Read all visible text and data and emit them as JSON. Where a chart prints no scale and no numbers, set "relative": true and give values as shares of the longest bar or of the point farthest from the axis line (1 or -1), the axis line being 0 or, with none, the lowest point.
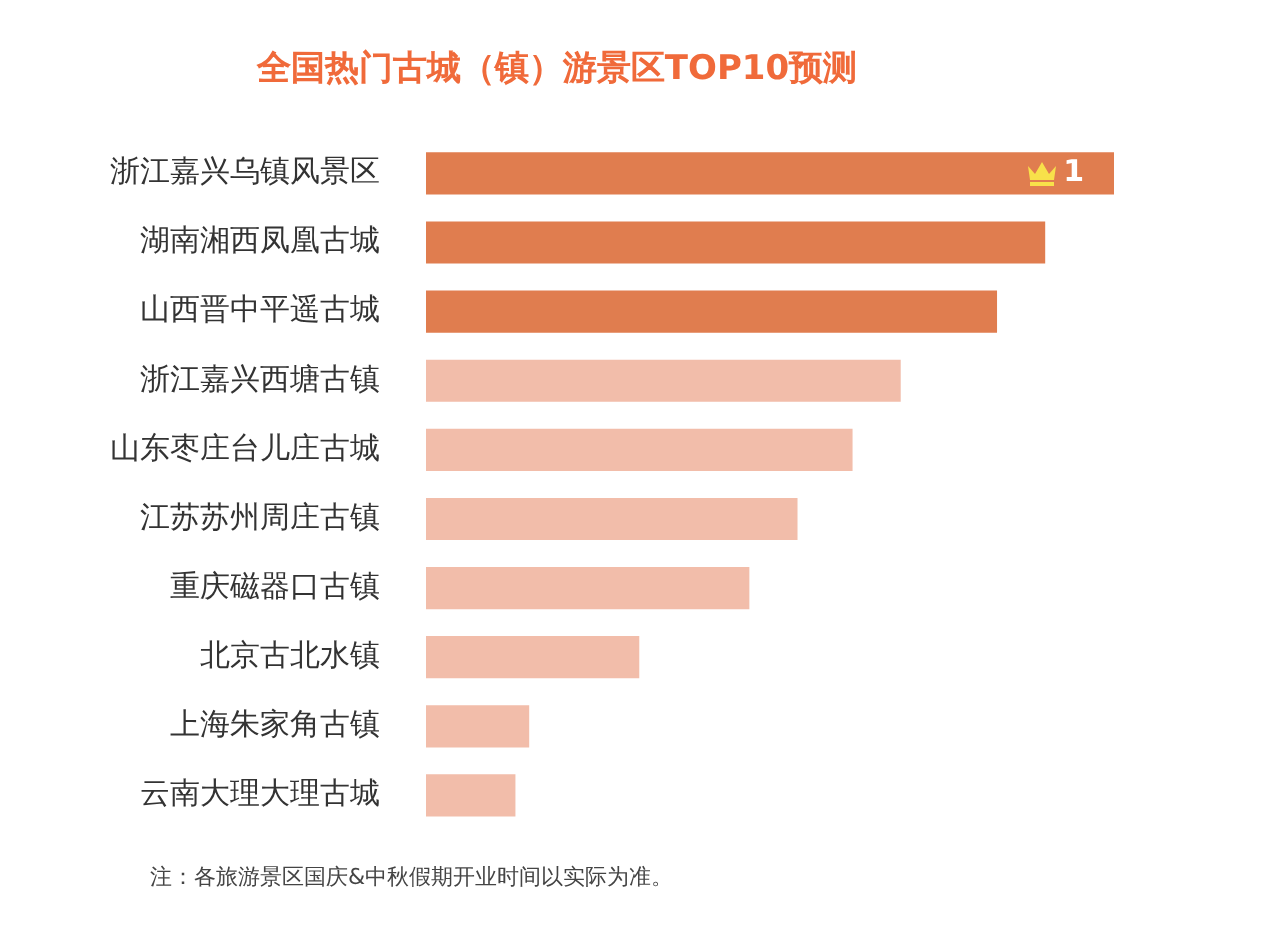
{
  "chart_data": {
    "type": "bar",
    "title": "全国热门古城（镇）游景区TOP10预测",
    "orientation": "horizontal",
    "relative": true,
    "categories": [
      "浙江嘉兴乌镇风景区",
      "湖南湘西凤凰古城",
      "山西晋中平遥古城",
      "浙江嘉兴西塘古镇",
      "山东枣庄台儿庄古城",
      "江苏苏州周庄古镇",
      "重庆磁器口古镇",
      "北京古北水镇",
      "上海朱家角古镇",
      "云南大理大理古城"
    ],
    "values": [
      1,
      0.9,
      0.83,
      0.69,
      0.62,
      0.54,
      0.47,
      0.31,
      0.15,
      0.13
    ],
    "colors": [
      "#e07d4f",
      "#e07d4f",
      "#e07d4f",
      "#f2bdaa",
      "#f2bdaa",
      "#f2bdaa",
      "#f2bdaa",
      "#f2bdaa",
      "#f2bdaa",
      "#f2bdaa"
    ],
    "annotations": [
      {
        "text": "1",
        "x": 1,
        "y": "浙江嘉兴乌镇风景区"
      },
      "注：各旅游景区国庆&中秋假期开业时间以实际为准。"
    ]
  }
}
